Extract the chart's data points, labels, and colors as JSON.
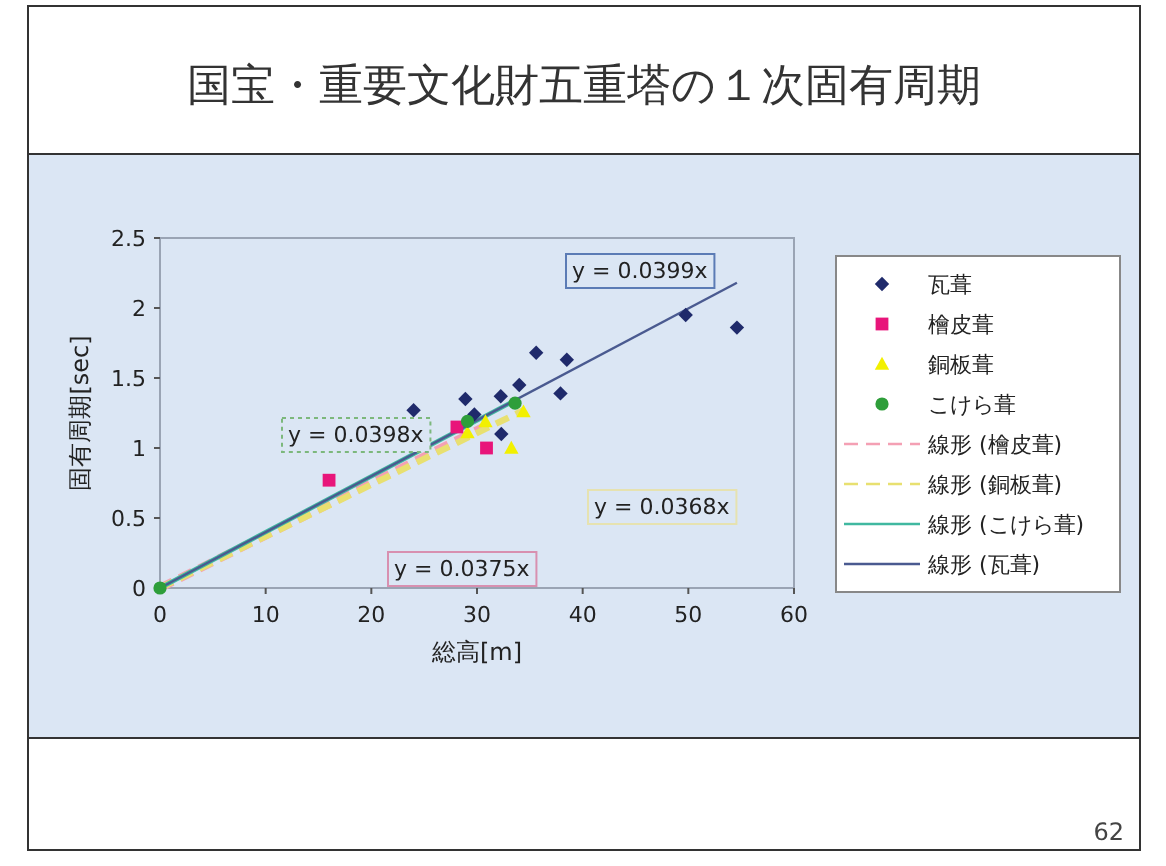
{
  "chart_data": {
    "type": "scatter",
    "title": "国宝・重要文化財五重塔の１次固有周期",
    "xlabel": "総高[m]",
    "ylabel": "固有周期[sec]",
    "xlim": [
      0,
      60
    ],
    "ylim": [
      0,
      2.5
    ],
    "xticks": [
      0,
      10,
      20,
      30,
      40,
      50,
      60
    ],
    "yticks": [
      0,
      0.5,
      1,
      1.5,
      2,
      2.5
    ],
    "legend": "right",
    "series": [
      {
        "name": "瓦葺",
        "color": "#1f2a6b",
        "marker": "diamond",
        "x": [
          24.0,
          28.9,
          29.75,
          32.25,
          32.3,
          34.0,
          35.6,
          37.9,
          38.5,
          49.75,
          54.6
        ],
        "values": [
          1.27,
          1.35,
          1.24,
          1.37,
          1.1,
          1.45,
          1.68,
          1.39,
          1.63,
          1.95,
          1.86
        ]
      },
      {
        "name": "檜皮葺",
        "color": "#e8157a",
        "marker": "square",
        "x": [
          16.0,
          28.1,
          30.9
        ],
        "values": [
          0.77,
          1.15,
          1.0
        ]
      },
      {
        "name": "銅板葺",
        "color": "#f2f000",
        "marker": "triangle",
        "x": [
          29.1,
          30.8,
          33.25,
          34.4
        ],
        "values": [
          1.11,
          1.19,
          1.0,
          1.26
        ]
      },
      {
        "name": "こけら葺",
        "color": "#2e9e3a",
        "marker": "circle",
        "x": [
          0,
          29.1,
          33.6
        ],
        "values": [
          0,
          1.19,
          1.32
        ]
      },
      {
        "name": "線形 (檜皮葺)",
        "type": "line",
        "color": "#f4a0b4",
        "line_style": "dashed",
        "x": [
          0,
          30.9
        ],
        "values": [
          0,
          1.16
        ]
      },
      {
        "name": "線形 (銅板葺)",
        "type": "line",
        "color": "#e8e070",
        "line_style": "dashed",
        "x": [
          0,
          34.4
        ],
        "values": [
          0,
          1.27
        ]
      },
      {
        "name": "線形 (こけら葺)",
        "type": "line",
        "color": "#40b8a0",
        "line_style": "solid",
        "x": [
          0,
          33.6
        ],
        "values": [
          0,
          1.34
        ]
      },
      {
        "name": "線形 (瓦葺)",
        "type": "line",
        "color": "#4a5a90",
        "line_style": "solid",
        "x": [
          0,
          54.6
        ],
        "values": [
          0,
          2.18
        ]
      }
    ],
    "annotations": [
      "y = 0.0399x",
      "y = 0.0398x",
      "y = 0.0368x",
      "y = 0.0375x",
      "62"
    ]
  }
}
